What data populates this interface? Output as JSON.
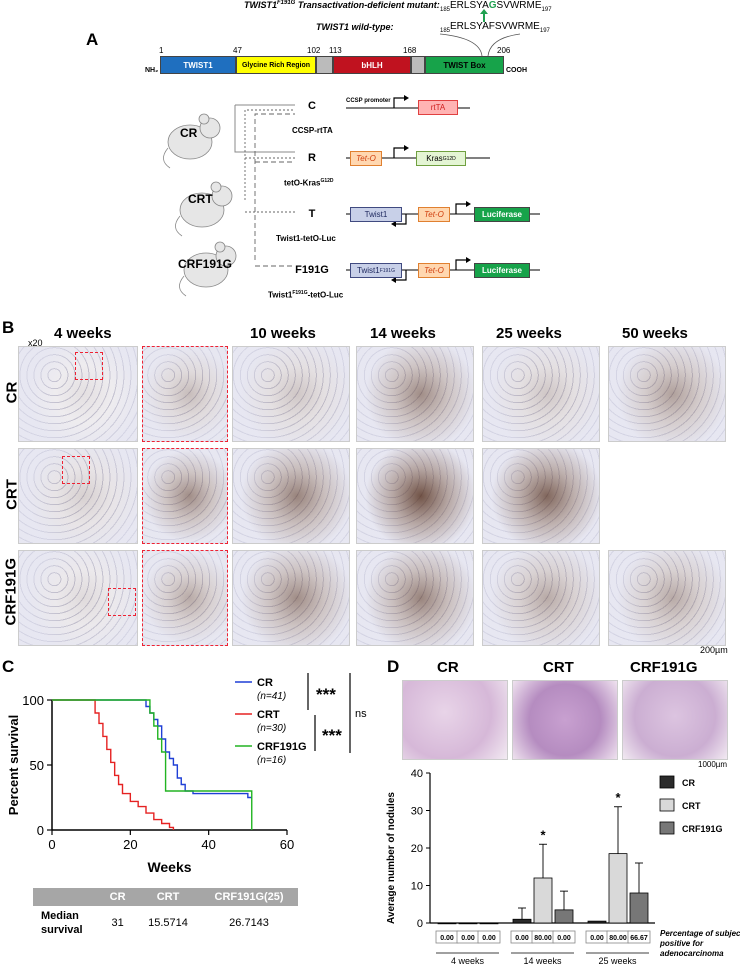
{
  "panels": {
    "a": "A",
    "b": "B",
    "c": "C",
    "d": "D"
  },
  "mutation": {
    "mutant_label": "TWIST1",
    "mutant_sup": "F191G",
    "mutant_rest": " Transactivation-deficient mutant:",
    "mutant_seq_pre": "ERLSYA",
    "mutant_seq_mid": "G",
    "mutant_seq_post": "SVWRME",
    "wt_label": "TWIST1 wild-type:",
    "wt_seq": "ERLSYAFSVWRME",
    "seq_start": "185",
    "seq_end": "197"
  },
  "domains": {
    "nh2": "NH₂",
    "cooh": "COOH",
    "items": [
      {
        "label": "TWIST1",
        "color": "#1f6fbf"
      },
      {
        "label": "Glycine Rich Region",
        "color": "#ffff00"
      },
      {
        "label": "",
        "color": "#bbbbbb"
      },
      {
        "label": "bHLH",
        "color": "#c0121f"
      },
      {
        "label": "",
        "color": "#bbbbbb"
      },
      {
        "label": "TWIST Box",
        "color": "#17a34a"
      }
    ],
    "positions": [
      "1",
      "47",
      "102",
      "113",
      "168",
      "206"
    ]
  },
  "mice": {
    "cr": "CR",
    "crt": "CRT",
    "crf": "CRF191G"
  },
  "constructs": {
    "c_letter": "C",
    "c_name": "CCSP-rtTA",
    "r_letter": "R",
    "r_name": "tetO-Kras",
    "r_sup": "G12D",
    "t_letter": "T",
    "t_name": "Twist1-tetO-Luc",
    "f_letter": "F191G",
    "f_name": "Twist1",
    "f_sup": "F191G",
    "f_name_rest": "-tetO-Luc",
    "ccsp_promoter": "CCSP promoter",
    "rtta": "rtTA",
    "teto": "Tet-O",
    "kras": "Kras",
    "kras_sup": "G12D",
    "twist1": "Twist1",
    "twist1_mut": "Twist1",
    "twist1_mut_sup": "F191G",
    "luciferase": "Luciferase"
  },
  "histology": {
    "magnification": "x20",
    "weeks": [
      "4 weeks",
      "10 weeks",
      "14 weeks",
      "25 weeks",
      "50 weeks"
    ],
    "rows": [
      "CR",
      "CRT",
      "CRF191G"
    ],
    "scale": "200µm"
  },
  "survival": {
    "ylabel": "Percent survival",
    "xlabel": "Weeks",
    "legend": [
      {
        "name": "CR",
        "n": "(n=41)",
        "color": "#1f3fd6"
      },
      {
        "name": "CRT",
        "n": "(n=30)",
        "color": "#e52222"
      },
      {
        "name": "CRF191G",
        "n": "(n=16)",
        "color": "#22b422"
      }
    ],
    "sig1": "***",
    "sig2": "***",
    "ns": "ns"
  },
  "median_table": {
    "headers": [
      "",
      "CR",
      "CRT",
      "CRF191G(25)"
    ],
    "row_label_1": "Median",
    "row_label_2": "survival",
    "values": [
      "31",
      "15.5714",
      "26.7143"
    ]
  },
  "histo_d": {
    "labels": [
      "CR",
      "CRT",
      "CRF191G"
    ],
    "scale": "1000µm"
  },
  "chart_data": [
    {
      "type": "line",
      "title": "",
      "xlabel": "Weeks",
      "ylabel": "Percent survival",
      "xlim": [
        0,
        60
      ],
      "ylim": [
        0,
        100
      ],
      "xticks": [
        0,
        20,
        40,
        60
      ],
      "yticks": [
        0,
        50,
        100
      ],
      "series": [
        {
          "name": "CR",
          "color": "#1f3fd6",
          "points": [
            [
              0,
              100
            ],
            [
              22,
              100
            ],
            [
              24,
              95
            ],
            [
              25,
              90
            ],
            [
              26,
              85
            ],
            [
              27,
              80
            ],
            [
              28,
              70
            ],
            [
              29,
              60
            ],
            [
              30,
              55
            ],
            [
              31,
              50
            ],
            [
              32,
              40
            ],
            [
              33,
              35
            ],
            [
              34,
              30
            ],
            [
              36,
              28
            ],
            [
              50,
              25
            ],
            [
              51,
              25
            ]
          ]
        },
        {
          "name": "CRT",
          "color": "#e52222",
          "points": [
            [
              0,
              100
            ],
            [
              10,
              100
            ],
            [
              11,
              90
            ],
            [
              12,
              82
            ],
            [
              13,
              72
            ],
            [
              14,
              62
            ],
            [
              15,
              52
            ],
            [
              16,
              42
            ],
            [
              17,
              35
            ],
            [
              18,
              28
            ],
            [
              20,
              22
            ],
            [
              22,
              18
            ],
            [
              24,
              13
            ],
            [
              26,
              8
            ],
            [
              28,
              5
            ],
            [
              30,
              2
            ],
            [
              31,
              0
            ]
          ]
        },
        {
          "name": "CRF191G",
          "color": "#22b422",
          "points": [
            [
              0,
              100
            ],
            [
              23,
              100
            ],
            [
              25,
              90
            ],
            [
              26,
              80
            ],
            [
              27,
              70
            ],
            [
              28,
              60
            ],
            [
              29,
              30
            ],
            [
              50,
              30
            ],
            [
              51,
              0
            ]
          ]
        }
      ]
    },
    {
      "type": "bar",
      "title": "",
      "xlabel": "",
      "ylabel": "Average number of nodules",
      "ylim": [
        0,
        40
      ],
      "yticks": [
        0,
        10,
        20,
        30,
        40
      ],
      "groups": [
        "4 weeks",
        "14 weeks",
        "25 weeks"
      ],
      "series": [
        {
          "name": "CR",
          "color": "#2b2b2b",
          "values": [
            0,
            1,
            0.5
          ],
          "errors": [
            0,
            3,
            0
          ]
        },
        {
          "name": "CRT",
          "color": "#d9d9d9",
          "values": [
            0,
            12,
            18.5
          ],
          "errors": [
            0,
            9,
            12.5
          ]
        },
        {
          "name": "CRF191G",
          "color": "#777777",
          "values": [
            0,
            3.5,
            8
          ],
          "errors": [
            0,
            5,
            8
          ]
        }
      ],
      "significance": [
        "",
        "*",
        "*"
      ],
      "percent_positive": [
        "0.00",
        "0.00",
        "0.00",
        "0.00",
        "80.00",
        "0.00",
        "0.00",
        "80.00",
        "66.67"
      ],
      "percent_label_1": "Percentage of subjects",
      "percent_label_2": "positive for",
      "percent_label_3": "adenocarcinoma"
    }
  ]
}
